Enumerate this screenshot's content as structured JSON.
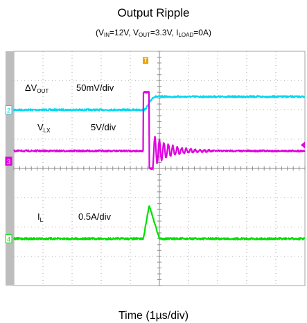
{
  "title": "Output Ripple",
  "subtitle": {
    "parts": [
      {
        "text": "(V"
      },
      {
        "text": "IN",
        "sub": true
      },
      {
        "text": "=12V, V"
      },
      {
        "text": "OUT",
        "sub": true
      },
      {
        "text": "=3.3V, I"
      },
      {
        "text": "LOAD",
        "sub": true
      },
      {
        "text": "=0A)"
      }
    ]
  },
  "xlabel": "Time (1µs/div)",
  "colors": {
    "grid": "#a6a6a6",
    "background": "#ffffff",
    "left_bar": "#bdbdbd",
    "trigger": "#f0a000",
    "vout": "#00d8f0",
    "vlx": "#e000e0",
    "il": "#00e000"
  },
  "chart_data": {
    "type": "line",
    "title": "Output Ripple",
    "xlabel": "Time (1µs/div)",
    "x_divisions": 10,
    "y_divisions": 8,
    "grid": true,
    "trigger_marker": {
      "label": "T",
      "x_div": 5.0
    },
    "center_marker": {
      "label": "+",
      "x_div": 5.0
    },
    "series": [
      {
        "name": "ΔV_OUT",
        "label_main": "ΔV",
        "label_sub": "OUT",
        "scale": "50mV/div",
        "marker": "2",
        "baseline_div": 2.0,
        "step_div": 0.45,
        "transition_start_us": 4.45,
        "transition_end_us": 4.85
      },
      {
        "name": "V_LX",
        "label_main": "V",
        "label_sub": "LX",
        "scale": "5V/div",
        "marker": "3",
        "baseline_div": 3.4,
        "high_div": -2.0,
        "low_div": 0.6,
        "on_start_us": 4.45,
        "on_end_us": 4.65,
        "ring_until_us": 6.8
      },
      {
        "name": "I_L",
        "label_main": "I",
        "label_sub": "L",
        "scale": "0.5A/div",
        "marker": "4",
        "baseline_div": 6.4,
        "peak_div": -1.15,
        "ramp_start_us": 4.45,
        "peak_us": 4.65,
        "ramp_end_us": 5.0
      }
    ]
  }
}
